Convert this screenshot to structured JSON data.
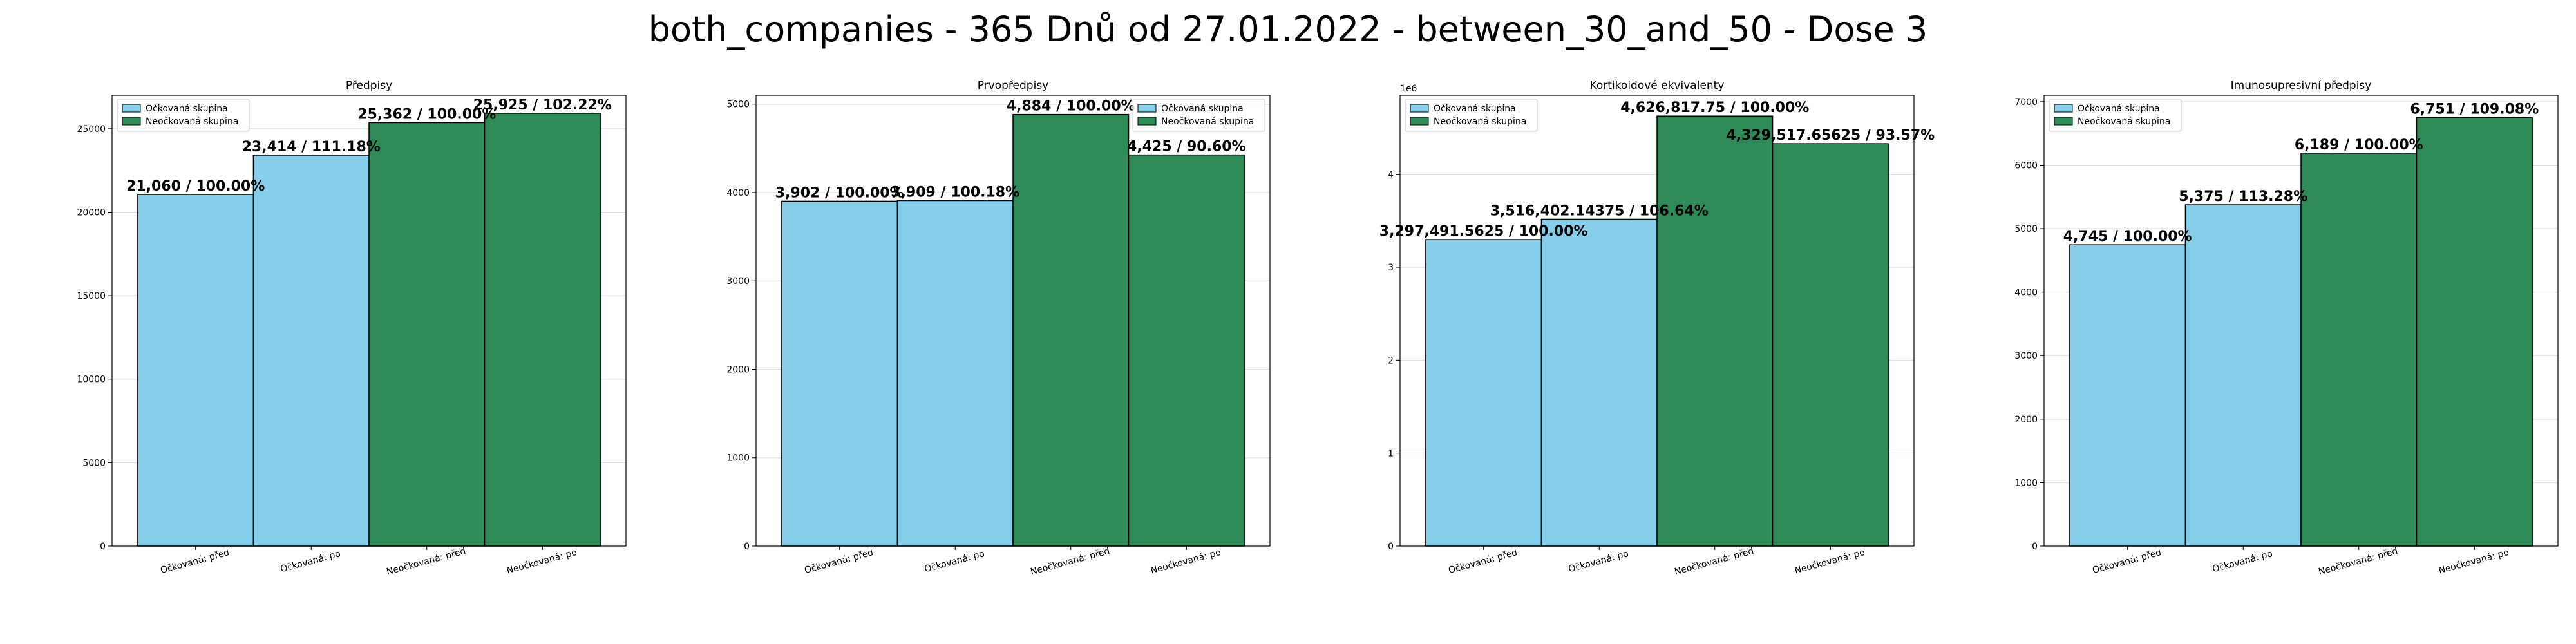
{
  "figure": {
    "title": "both_companies - 365 Dnů od 27.01.2022 - between_30_and_50 - Dose 3"
  },
  "colors": {
    "vaccinated": "#87ceeb",
    "unvaccinated": "#2e8b57",
    "edge": "#000000",
    "grid": "#dddddd"
  },
  "chart_data": [
    {
      "type": "bar",
      "title": "Předpisy",
      "categories": [
        "Očkovaná: před",
        "Očkovaná: po",
        "Neočkovaná: před",
        "Neočkovaná: po"
      ],
      "values": [
        21060,
        23414,
        25362,
        25925
      ],
      "value_labels": [
        "21,060 / 100.00%",
        "23,414 / 111.18%",
        "25,362 / 100.00%",
        "25,925 / 102.22%"
      ],
      "groups": [
        "vaccinated",
        "vaccinated",
        "unvaccinated",
        "unvaccinated"
      ],
      "ylim": [
        0,
        27000
      ],
      "yticks": [
        0,
        5000,
        10000,
        15000,
        20000,
        25000
      ],
      "ytick_labels": [
        "0",
        "5000",
        "10000",
        "15000",
        "20000",
        "25000"
      ],
      "offset_label": "",
      "legend": {
        "placement": "upper-left",
        "entries": [
          "Očkovaná skupina",
          "Neočkovaná skupina"
        ]
      },
      "grid": true
    },
    {
      "type": "bar",
      "title": "Prvopředpisy",
      "categories": [
        "Očkovaná: před",
        "Očkovaná: po",
        "Neočkovaná: před",
        "Neočkovaná: po"
      ],
      "values": [
        3902,
        3909,
        4884,
        4425
      ],
      "value_labels": [
        "3,902 / 100.00%",
        "3,909 / 100.18%",
        "4,884 / 100.00%",
        "4,425 / 90.60%"
      ],
      "groups": [
        "vaccinated",
        "vaccinated",
        "unvaccinated",
        "unvaccinated"
      ],
      "ylim": [
        0,
        5100
      ],
      "yticks": [
        0,
        1000,
        2000,
        3000,
        4000,
        5000
      ],
      "ytick_labels": [
        "0",
        "1000",
        "2000",
        "3000",
        "4000",
        "5000"
      ],
      "offset_label": "",
      "legend": {
        "placement": "upper-right",
        "entries": [
          "Očkovaná skupina",
          "Neočkovaná skupina"
        ]
      },
      "grid": true
    },
    {
      "type": "bar",
      "title": "Kortikoidové ekvivalenty",
      "categories": [
        "Očkovaná: před",
        "Očkovaná: po",
        "Neočkovaná: před",
        "Neočkovaná: po"
      ],
      "values": [
        3297491.5625,
        3516402.14375,
        4626817.75,
        4329517.65625
      ],
      "value_labels": [
        "3,297,491.5625 / 100.00%",
        "3,516,402.14375 / 106.64%",
        "4,626,817.75 / 100.00%",
        "4,329,517.65625 / 93.57%"
      ],
      "groups": [
        "vaccinated",
        "vaccinated",
        "unvaccinated",
        "unvaccinated"
      ],
      "ylim": [
        0,
        4850000
      ],
      "yticks": [
        0,
        1000000,
        2000000,
        3000000,
        4000000
      ],
      "ytick_labels": [
        "0",
        "1",
        "2",
        "3",
        "4"
      ],
      "offset_label": "1e6",
      "legend": {
        "placement": "upper-left",
        "entries": [
          "Očkovaná skupina",
          "Neočkovaná skupina"
        ]
      },
      "grid": true
    },
    {
      "type": "bar",
      "title": "Imunosupresivní předpisy",
      "categories": [
        "Očkovaná: před",
        "Očkovaná: po",
        "Neočkovaná: před",
        "Neočkovaná: po"
      ],
      "values": [
        4745,
        5375,
        6189,
        6751
      ],
      "value_labels": [
        "4,745 / 100.00%",
        "5,375 / 113.28%",
        "6,189 / 100.00%",
        "6,751 / 109.08%"
      ],
      "groups": [
        "vaccinated",
        "vaccinated",
        "unvaccinated",
        "unvaccinated"
      ],
      "ylim": [
        0,
        7100
      ],
      "yticks": [
        0,
        1000,
        2000,
        3000,
        4000,
        5000,
        6000,
        7000
      ],
      "ytick_labels": [
        "0",
        "1000",
        "2000",
        "3000",
        "4000",
        "5000",
        "6000",
        "7000"
      ],
      "offset_label": "",
      "legend": {
        "placement": "upper-left",
        "entries": [
          "Očkovaná skupina",
          "Neočkovaná skupina"
        ]
      },
      "grid": true
    }
  ]
}
